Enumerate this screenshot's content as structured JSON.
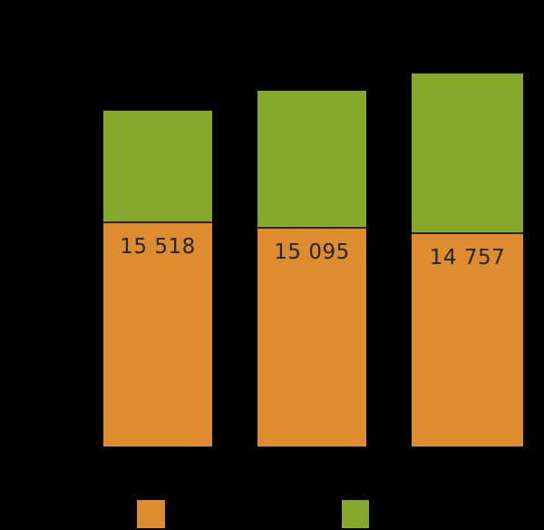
{
  "chart_data": {
    "type": "bar",
    "stacked": true,
    "bar_count": 3,
    "value_labels": [
      "15 518",
      "15 095",
      "14 757"
    ],
    "series": [
      {
        "name": "bottom-segment-orange",
        "color": "#DE8C30",
        "values": [
          15518,
          15095,
          14757
        ],
        "labels_visible": true
      },
      {
        "name": "top-segment-green",
        "color": "#87A92B",
        "values": [
          7700,
          9450,
          11050
        ],
        "labels_visible": false,
        "estimated_from_pixels": true
      }
    ],
    "title": "",
    "xlabel": "",
    "ylabel": "",
    "legend_position": "bottom",
    "grid": false,
    "note": "Title, axis tick labels, category labels and legend captions are black text on a black/transparent background and are not visible; only bars, bar value labels and legend color swatches are rendered."
  },
  "legend": {
    "swatches": [
      {
        "name": "orange",
        "color": "#DE8C30"
      },
      {
        "name": "green",
        "color": "#87A92B"
      }
    ]
  },
  "colors": {
    "background": "#000000",
    "separator_line": "#22262B",
    "value_text": "#22262B"
  }
}
